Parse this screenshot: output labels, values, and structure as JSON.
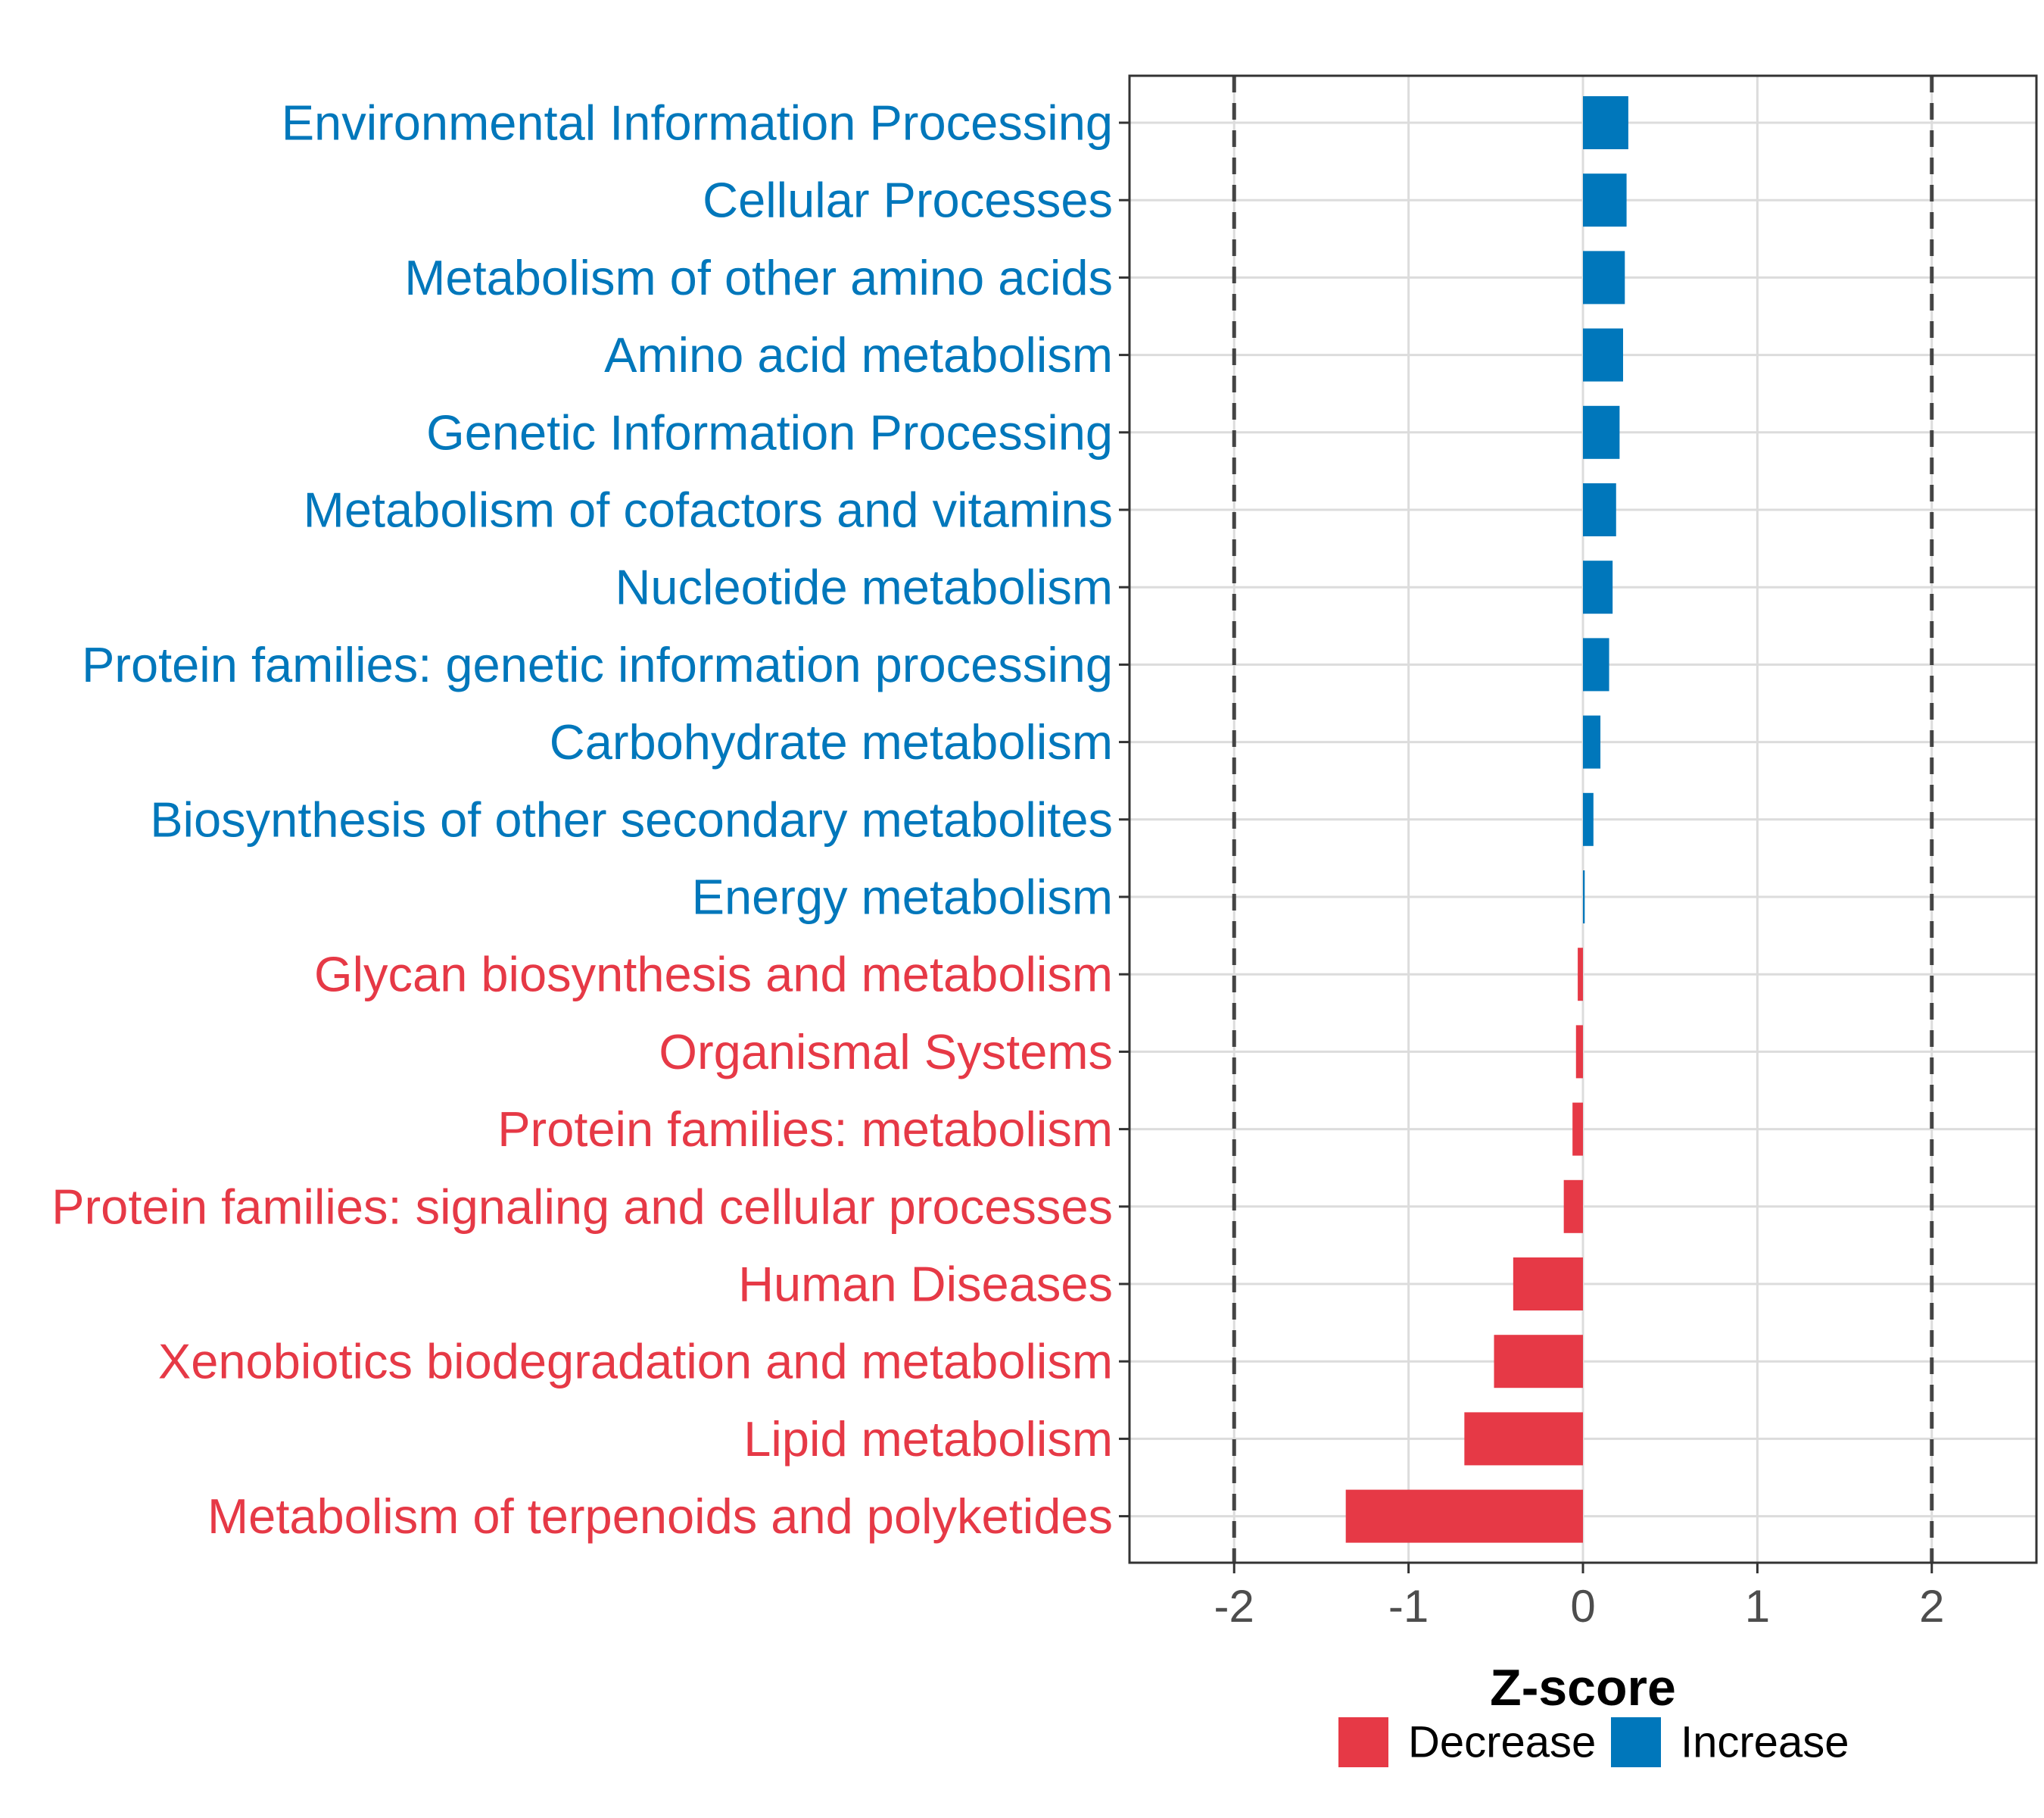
{
  "chart_data": {
    "type": "bar",
    "orientation": "horizontal",
    "xlabel": "Z-score",
    "xlim": [
      -2.6,
      2.6
    ],
    "xticks": [
      -2,
      -1,
      0,
      1,
      2
    ],
    "xtick_labels": [
      "-2",
      "-1",
      "0",
      "1",
      "2"
    ],
    "reference_lines": [
      -2,
      2
    ],
    "grid": true,
    "legend_position": "bottom",
    "colors": {
      "Decrease": "#E63946",
      "Increase": "#0077BB"
    },
    "legend": [
      {
        "label": "Decrease",
        "color": "#E63946"
      },
      {
        "label": "Increase",
        "color": "#0077BB"
      }
    ],
    "categories": [
      "Environmental Information Processing",
      "Cellular Processes",
      "Metabolism of other amino acids",
      "Amino acid metabolism",
      "Genetic Information Processing",
      "Metabolism of cofactors and vitamins",
      "Nucleotide metabolism",
      "Protein families: genetic information processing",
      "Carbohydrate metabolism",
      "Biosynthesis of other secondary metabolites",
      "Energy metabolism",
      "Glycan biosynthesis and metabolism",
      "Organismal Systems",
      "Protein families: metabolism",
      "Protein families: signaling and cellular processes",
      "Human Diseases",
      "Xenobiotics biodegradation and metabolism",
      "Lipid metabolism",
      "Metabolism of terpenoids and polyketides"
    ],
    "values": [
      0.26,
      0.25,
      0.24,
      0.23,
      0.21,
      0.19,
      0.17,
      0.15,
      0.1,
      0.06,
      0.01,
      -0.03,
      -0.04,
      -0.06,
      -0.11,
      -0.4,
      -0.51,
      -0.68,
      -1.36
    ],
    "groups": [
      "Increase",
      "Increase",
      "Increase",
      "Increase",
      "Increase",
      "Increase",
      "Increase",
      "Increase",
      "Increase",
      "Increase",
      "Increase",
      "Decrease",
      "Decrease",
      "Decrease",
      "Decrease",
      "Decrease",
      "Decrease",
      "Decrease",
      "Decrease"
    ]
  }
}
